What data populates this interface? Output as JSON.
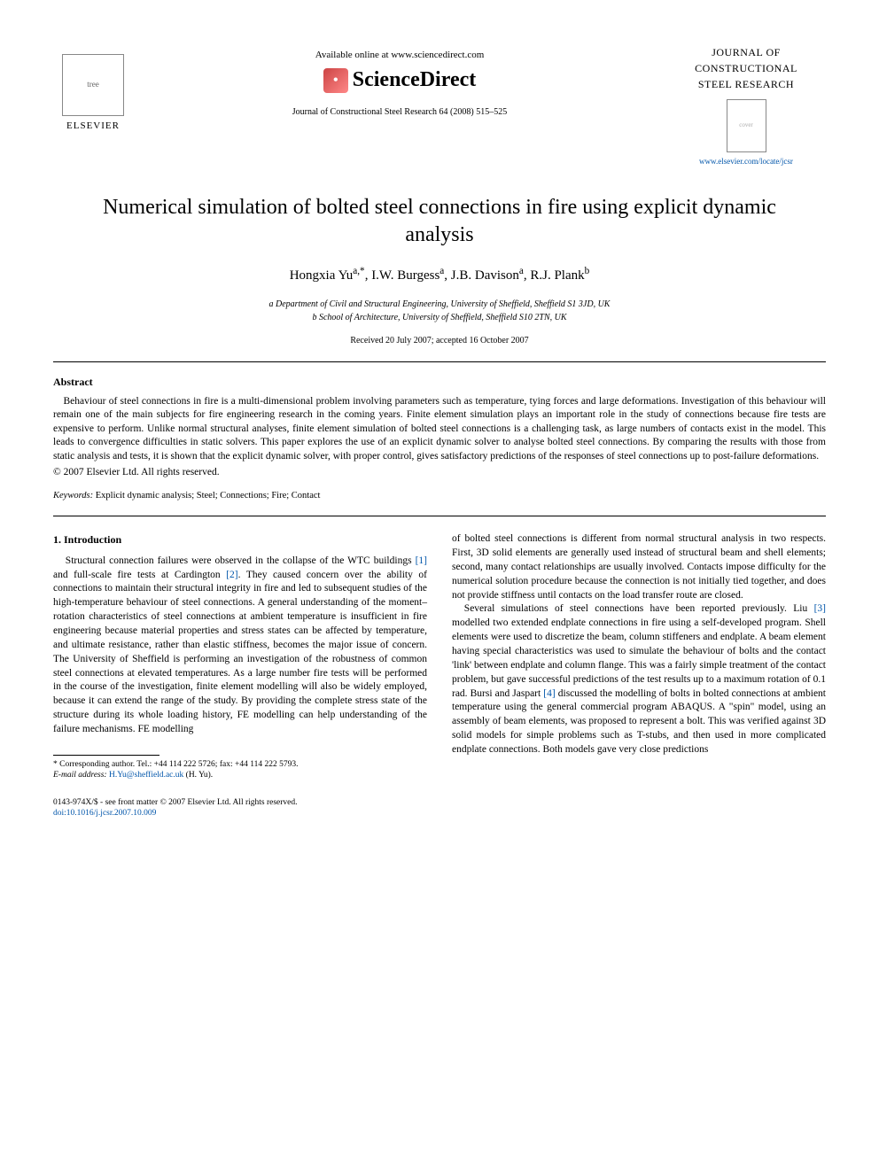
{
  "header": {
    "publisher_name": "ELSEVIER",
    "available_online": "Available online at www.sciencedirect.com",
    "platform": "ScienceDirect",
    "journal_ref": "Journal of Constructional Steel Research 64 (2008) 515–525",
    "journal_name_line1": "JOURNAL OF",
    "journal_name_line2": "CONSTRUCTIONAL",
    "journal_name_line3": "STEEL RESEARCH",
    "journal_url": "www.elsevier.com/locate/jcsr"
  },
  "title": "Numerical simulation of bolted steel connections in fire using explicit dynamic analysis",
  "authors": "Hongxia Yu",
  "author_sup1": "a,*",
  "author2": ", I.W. Burgess",
  "author_sup2": "a",
  "author3": ", J.B. Davison",
  "author_sup3": "a",
  "author4": ", R.J. Plank",
  "author_sup4": "b",
  "affiliations": {
    "a": "a Department of Civil and Structural Engineering, University of Sheffield, Sheffield S1 3JD, UK",
    "b": "b School of Architecture, University of Sheffield, Sheffield S10 2TN, UK"
  },
  "dates": "Received 20 July 2007; accepted 16 October 2007",
  "abstract": {
    "heading": "Abstract",
    "body": "Behaviour of steel connections in fire is a multi-dimensional problem involving parameters such as temperature, tying forces and large deformations. Investigation of this behaviour will remain one of the main subjects for fire engineering research in the coming years. Finite element simulation plays an important role in the study of connections because fire tests are expensive to perform. Unlike normal structural analyses, finite element simulation of bolted steel connections is a challenging task, as large numbers of contacts exist in the model. This leads to convergence difficulties in static solvers. This paper explores the use of an explicit dynamic solver to analyse bolted steel connections. By comparing the results with those from static analysis and tests, it is shown that the explicit dynamic solver, with proper control, gives satisfactory predictions of the responses of steel connections up to post-failure deformations.",
    "copyright": "© 2007 Elsevier Ltd. All rights reserved."
  },
  "keywords": {
    "label": "Keywords:",
    "text": " Explicit dynamic analysis; Steel; Connections; Fire; Contact"
  },
  "body": {
    "section1_head": "1. Introduction",
    "col1_p1a": "Structural connection failures were observed in the collapse of the WTC buildings ",
    "cite1": "[1]",
    "col1_p1b": " and full-scale fire tests at Cardington ",
    "cite2": "[2]",
    "col1_p1c": ". They caused concern over the ability of connections to maintain their structural integrity in fire and led to subsequent studies of the high-temperature behaviour of steel connections. A general understanding of the moment–rotation characteristics of steel connections at ambient temperature is insufficient in fire engineering because material properties and stress states can be affected by temperature, and ultimate resistance, rather than elastic stiffness, becomes the major issue of concern. The University of Sheffield is performing an investigation of the robustness of common steel connections at elevated temperatures. As a large number fire tests will be performed in the course of the investigation, finite element modelling will also be widely employed, because it can extend the range of the study. By providing the complete stress state of the structure during its whole loading history, FE modelling can help understanding of the failure mechanisms. FE modelling",
    "col2_p1": "of bolted steel connections is different from normal structural analysis in two respects. First, 3D solid elements are generally used instead of structural beam and shell elements; second, many contact relationships are usually involved. Contacts impose difficulty for the numerical solution procedure because the connection is not initially tied together, and does not provide stiffness until contacts on the load transfer route are closed.",
    "col2_p2a": "Several simulations of steel connections have been reported previously. Liu ",
    "cite3": "[3]",
    "col2_p2b": " modelled two extended endplate connections in fire using a self-developed program. Shell elements were used to discretize the beam, column stiffeners and endplate. A beam element having special characteristics was used to simulate the behaviour of bolts and the contact 'link' between endplate and column flange. This was a fairly simple treatment of the contact problem, but gave successful predictions of the test results up to a maximum rotation of 0.1 rad. Bursi and Jaspart ",
    "cite4": "[4]",
    "col2_p2c": " discussed the modelling of bolts in bolted connections at ambient temperature using the general commercial program ABAQUS. A \"spin\" model, using an assembly of beam elements, was proposed to represent a bolt. This was verified against 3D solid models for simple problems such as T-stubs, and then used in more complicated endplate connections. Both models gave very close predictions"
  },
  "footnote": {
    "corr": "* Corresponding author. Tel.: +44 114 222 5726; fax: +44 114 222 5793.",
    "email_label": "E-mail address: ",
    "email": "H.Yu@sheffield.ac.uk",
    "email_who": " (H. Yu)."
  },
  "footer": {
    "line1": "0143-974X/$ - see front matter © 2007 Elsevier Ltd. All rights reserved.",
    "doi": "doi:10.1016/j.jcsr.2007.10.009"
  }
}
